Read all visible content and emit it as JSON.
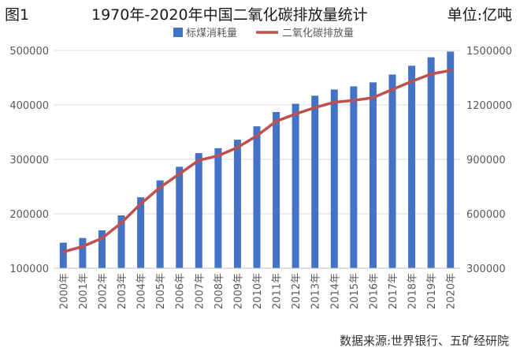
{
  "figure": {
    "label": "图1",
    "title": "1970年-2020年中国二氧化碳排放量统计",
    "unit": "单位:亿吨",
    "source": "数据来源:世界银行、五矿经研院"
  },
  "chart_data": {
    "type": "bar",
    "categories": [
      "2000年",
      "2001年",
      "2002年",
      "2003年",
      "2004年",
      "2005年",
      "2006年",
      "2007年",
      "2008年",
      "2009年",
      "2010年",
      "2011年",
      "2012年",
      "2013年",
      "2014年",
      "2015年",
      "2016年",
      "2017年",
      "2018年",
      "2019年",
      "2020年"
    ],
    "series": [
      {
        "name": "标煤消耗量",
        "type": "bar",
        "axis": "left",
        "color": "#4472C4",
        "values": [
          146964,
          155547,
          169577,
          197083,
          230281,
          261369,
          286467,
          311442,
          320611,
          336126,
          360648,
          387043,
          402138,
          416913,
          428334,
          434113,
          441492,
          455827,
          471925,
          487488,
          498000
        ]
      },
      {
        "name": "二氧化碳排放量",
        "type": "line",
        "axis": "right",
        "color": "#C0504D",
        "values": [
          390000,
          420000,
          465000,
          550000,
          655000,
          745000,
          820000,
          895000,
          920000,
          965000,
          1030000,
          1110000,
          1150000,
          1185000,
          1215000,
          1225000,
          1240000,
          1285000,
          1330000,
          1370000,
          1390000
        ]
      }
    ],
    "y_left": {
      "min": 100000,
      "max": 500000,
      "ticks": [
        100000,
        200000,
        300000,
        400000,
        500000
      ]
    },
    "y_right": {
      "min": 300000,
      "max": 1500000,
      "ticks": [
        300000,
        600000,
        900000,
        1200000,
        1500000
      ]
    },
    "grid": true,
    "legend_position": "top-center"
  }
}
